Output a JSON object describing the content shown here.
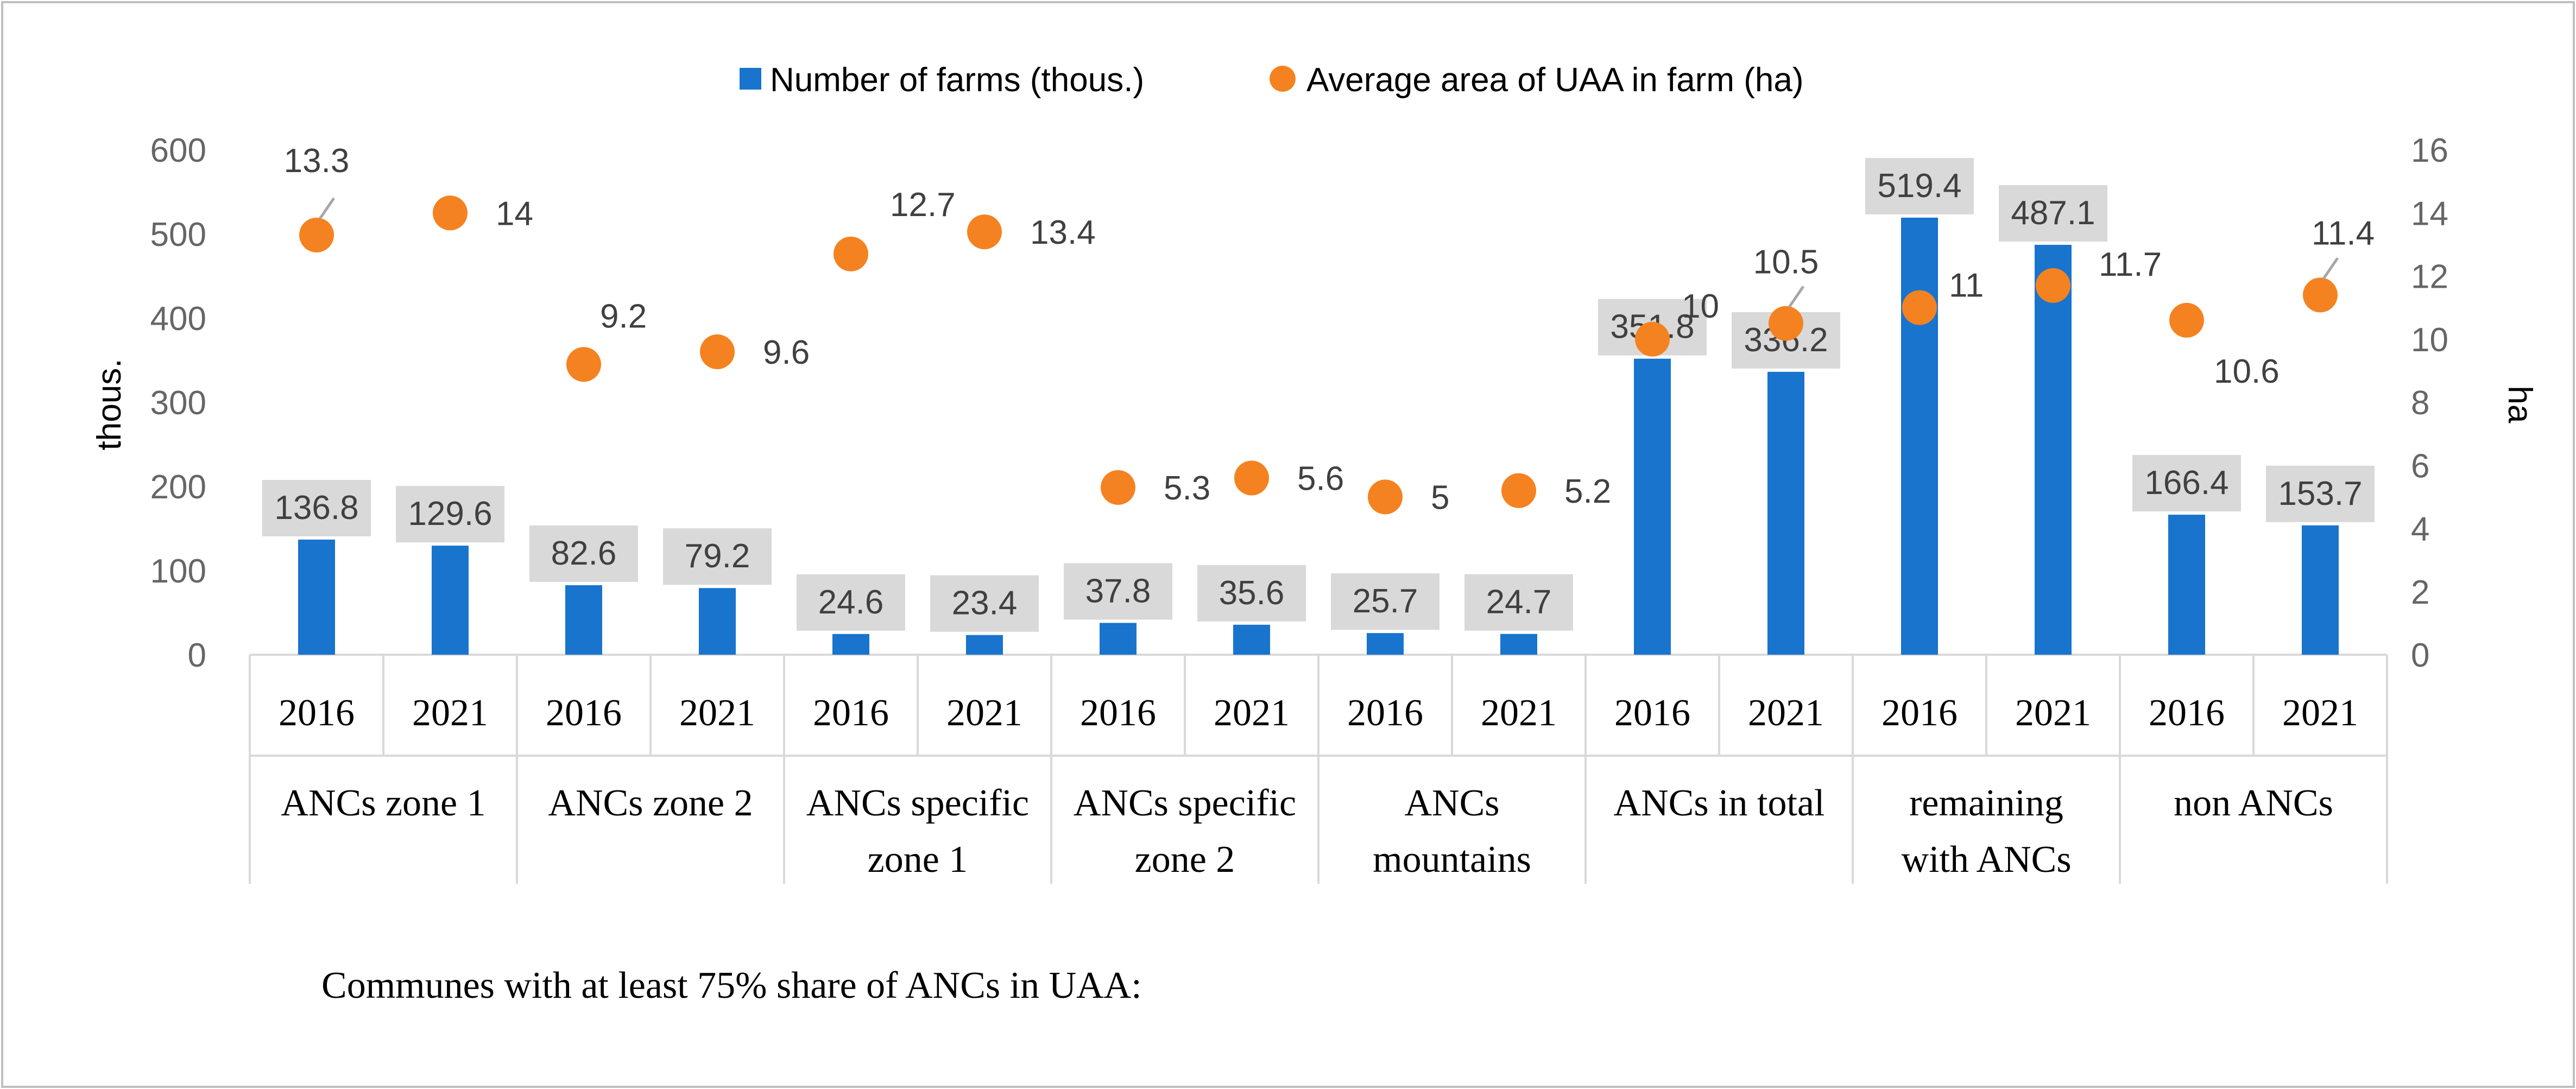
{
  "chart_data": {
    "type": "bar",
    "legend": [
      "Number of farms (thous.)",
      "Average area of UAA in farm (ha)"
    ],
    "colors": {
      "bars": "#1874cd",
      "dots": "#f58220",
      "label_box": "#d9d9d9"
    },
    "ylabel_left": "thous.",
    "ylabel_right": "ha",
    "ylim_left": [
      0,
      600
    ],
    "ylim_right": [
      0,
      16
    ],
    "yticks_left": [
      "0",
      "100",
      "200",
      "300",
      "400",
      "500",
      "600"
    ],
    "yticks_right": [
      "0",
      "2",
      "4",
      "6",
      "8",
      "10",
      "12",
      "14",
      "16"
    ],
    "groups": [
      [
        "ANCs zone 1"
      ],
      [
        "ANCs zone 2"
      ],
      [
        "ANCs  specific",
        "zone 1"
      ],
      [
        "ANCs specific",
        "zone 2"
      ],
      [
        "ANCs",
        "mountains"
      ],
      [
        "ANCs in total"
      ],
      [
        "remaining",
        "with ANCs"
      ],
      [
        "non ANCs"
      ]
    ],
    "years": [
      "2016",
      "2021",
      "2016",
      "2021",
      "2016",
      "2021",
      "2016",
      "2021",
      "2016",
      "2021",
      "2016",
      "2021",
      "2016",
      "2021",
      "2016",
      "2021"
    ],
    "series": [
      {
        "name": "Number of farms (thous.)",
        "kind": "bar",
        "axis": "left",
        "values": [
          136.8,
          129.6,
          82.6,
          79.2,
          24.6,
          23.4,
          37.8,
          35.6,
          25.7,
          24.7,
          351.8,
          336.2,
          519.4,
          487.1,
          166.4,
          153.7
        ],
        "labels": [
          "136.8",
          "129.6",
          "82.6",
          "79.2",
          "24.6",
          "23.4",
          "37.8",
          "35.6",
          "25.7",
          "24.7",
          "351.8",
          "336.2",
          "519.4",
          "487.1",
          "166.4",
          "153.7"
        ]
      },
      {
        "name": "Average area of UAA in farm (ha)",
        "kind": "scatter",
        "axis": "right",
        "values": [
          13.3,
          14,
          9.2,
          9.6,
          12.7,
          13.4,
          5.3,
          5.6,
          5,
          5.2,
          10,
          10.5,
          11,
          11.7,
          10.6,
          11.4
        ],
        "labels": [
          "13.3",
          "14",
          "9.2",
          "9.6",
          "12.7",
          "13.4",
          "5.3",
          "5.6",
          "5",
          "5.2",
          "10",
          "10.5",
          "11",
          "11.7",
          "10.6",
          "11.4"
        ]
      }
    ],
    "footnote": "Communes with at least 75% share of ANCs in UAA:"
  }
}
